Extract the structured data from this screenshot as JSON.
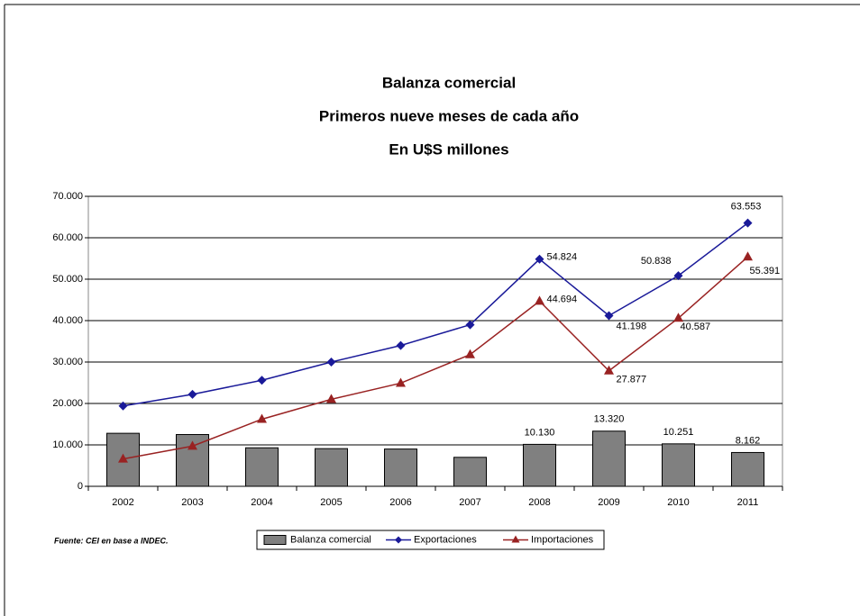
{
  "chart_data": {
    "type": "bar",
    "title": "Balanza comercial",
    "subtitle": "Primeros nueve meses de cada año",
    "unit_line": "En U$S millones",
    "source": "Fuente: CEI en base a INDEC.",
    "categories": [
      "2002",
      "2003",
      "2004",
      "2005",
      "2006",
      "2007",
      "2008",
      "2009",
      "2010",
      "2011"
    ],
    "series": [
      {
        "name": "Balanza comercial",
        "type": "bar",
        "color": "#808080",
        "values": [
          12800,
          12500,
          9300,
          9100,
          9000,
          7000,
          10130,
          13320,
          10251,
          8162
        ],
        "value_labels": [
          null,
          null,
          null,
          null,
          null,
          null,
          "10.130",
          "13.320",
          "10.251",
          "8.162"
        ]
      },
      {
        "name": "Exportaciones",
        "type": "line",
        "marker": "diamond",
        "color": "#1a1a99",
        "values": [
          19400,
          22200,
          25600,
          30000,
          34000,
          39000,
          54824,
          41198,
          50838,
          63553
        ],
        "value_labels": [
          null,
          null,
          null,
          null,
          null,
          null,
          "54.824",
          "41.198",
          "50.838",
          "63.553"
        ]
      },
      {
        "name": "Importaciones",
        "type": "line",
        "marker": "triangle",
        "color": "#992222",
        "values": [
          6600,
          9700,
          16200,
          21000,
          24900,
          31800,
          44694,
          27877,
          40587,
          55391
        ],
        "value_labels": [
          null,
          null,
          null,
          null,
          null,
          null,
          "44.694",
          "27.877",
          "40.587",
          "55.391"
        ]
      }
    ],
    "ylim": [
      0,
      70000
    ],
    "yticks": [
      0,
      {
        "value": 10000,
        "label": "10.000"
      },
      {
        "value": 20000,
        "label": "20.000"
      },
      {
        "value": 30000,
        "label": "30.000"
      },
      {
        "value": 40000,
        "label": "40.000"
      },
      {
        "value": 50000,
        "label": "50.000"
      },
      {
        "value": 60000,
        "label": "60.000"
      },
      {
        "value": 70000,
        "label": "70.000"
      }
    ],
    "grid": true
  }
}
